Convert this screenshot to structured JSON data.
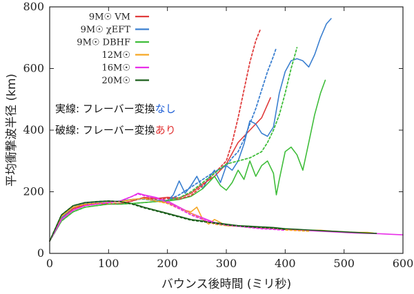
{
  "chart_data": {
    "type": "line",
    "xlabel": "バウンス後時間 (ミリ秒)",
    "ylabel": "平均衝撃波半径 (km)",
    "xlim": [
      0,
      600
    ],
    "ylim": [
      0,
      800
    ],
    "x_ticks": [
      "0",
      "100",
      "200",
      "300",
      "400",
      "500",
      "600"
    ],
    "y_ticks": [
      "0",
      "200",
      "400",
      "600",
      "800"
    ],
    "grid": false,
    "legend_position": "top-left",
    "legend_entries": [
      "9M☉ VM",
      "9M☉ χEFT",
      "9M☉ DBHF",
      "12M☉",
      "16M☉",
      "20M☉"
    ],
    "annotations": {
      "line1_prefix": "実線: フレーバー変換",
      "line1_highlight": "なし",
      "line2_prefix": "破線: フレーバー変換",
      "line2_highlight": "あり"
    },
    "annotation_colors": {
      "line1_highlight": "#1f5fd6",
      "line2_highlight": "#e03030"
    },
    "series": [
      {
        "name": "9M☉ VM",
        "style": "solid",
        "color": "#e03c3c",
        "x": [
          0,
          20,
          40,
          60,
          80,
          100,
          120,
          140,
          160,
          180,
          200,
          220,
          240,
          260,
          280,
          300,
          320,
          340,
          360,
          375
        ],
        "y": [
          40,
          115,
          145,
          158,
          162,
          160,
          162,
          170,
          182,
          178,
          182,
          180,
          195,
          225,
          250,
          290,
          360,
          400,
          440,
          505
        ]
      },
      {
        "name": "9M☉ VM",
        "style": "dashed",
        "color": "#e03c3c",
        "x": [
          0,
          20,
          40,
          60,
          80,
          100,
          120,
          140,
          160,
          180,
          200,
          220,
          240,
          260,
          280,
          300,
          310,
          320,
          330,
          340,
          350,
          358
        ],
        "y": [
          40,
          115,
          145,
          158,
          162,
          160,
          162,
          170,
          180,
          176,
          178,
          176,
          188,
          220,
          260,
          300,
          360,
          440,
          530,
          620,
          690,
          728
        ]
      },
      {
        "name": "9M☉ χEFT",
        "style": "solid",
        "color": "#3a7fd0",
        "x": [
          0,
          20,
          40,
          60,
          80,
          100,
          120,
          140,
          160,
          180,
          200,
          210,
          220,
          230,
          240,
          250,
          260,
          270,
          280,
          290,
          300,
          310,
          320,
          330,
          340,
          350,
          360,
          370,
          380,
          390,
          400,
          410,
          420,
          430,
          440,
          450,
          460,
          470,
          478
        ],
        "y": [
          40,
          115,
          150,
          162,
          165,
          165,
          170,
          175,
          178,
          172,
          170,
          190,
          235,
          195,
          220,
          250,
          210,
          245,
          270,
          230,
          285,
          270,
          300,
          355,
          430,
          420,
          390,
          380,
          410,
          520,
          590,
          625,
          632,
          625,
          605,
          645,
          700,
          745,
          762
        ]
      },
      {
        "name": "9M☉ χEFT",
        "style": "dashed",
        "color": "#3a7fd0",
        "x": [
          0,
          20,
          40,
          60,
          80,
          100,
          120,
          140,
          160,
          180,
          200,
          220,
          240,
          260,
          280,
          300,
          310,
          320,
          330,
          340,
          350,
          360,
          370,
          380,
          385
        ],
        "y": [
          40,
          115,
          150,
          162,
          165,
          165,
          170,
          175,
          176,
          170,
          172,
          190,
          215,
          240,
          265,
          285,
          310,
          330,
          370,
          420,
          470,
          530,
          590,
          640,
          668
        ]
      },
      {
        "name": "9M☉ DBHF",
        "style": "solid",
        "color": "#3fbd3a",
        "x": [
          0,
          20,
          40,
          60,
          80,
          100,
          120,
          140,
          160,
          180,
          200,
          220,
          240,
          260,
          270,
          280,
          290,
          300,
          310,
          320,
          330,
          340,
          350,
          360,
          370,
          380,
          385,
          390,
          400,
          410,
          420,
          430,
          440,
          450,
          460,
          468
        ],
        "y": [
          40,
          105,
          135,
          150,
          155,
          160,
          160,
          162,
          165,
          168,
          170,
          175,
          185,
          210,
          230,
          250,
          220,
          205,
          230,
          270,
          240,
          300,
          250,
          285,
          300,
          260,
          190,
          240,
          330,
          345,
          320,
          270,
          360,
          450,
          520,
          562
        ]
      },
      {
        "name": "9M☉ DBHF",
        "style": "dashed",
        "color": "#3fbd3a",
        "x": [
          0,
          20,
          40,
          60,
          80,
          100,
          120,
          140,
          160,
          180,
          200,
          220,
          240,
          260,
          280,
          300,
          320,
          340,
          360,
          370,
          380,
          390,
          400,
          410,
          420
        ],
        "y": [
          40,
          105,
          135,
          150,
          155,
          160,
          160,
          162,
          165,
          168,
          172,
          180,
          200,
          230,
          260,
          290,
          300,
          310,
          330,
          360,
          400,
          450,
          520,
          600,
          668
        ]
      },
      {
        "name": "12M☉",
        "style": "solid",
        "color": "#f5a623",
        "x": [
          0,
          20,
          40,
          60,
          80,
          100,
          120,
          140,
          160,
          180,
          200,
          220,
          230,
          240,
          250,
          260,
          270,
          280,
          300,
          320,
          340,
          360,
          380,
          400,
          420,
          440,
          460,
          480,
          500,
          520,
          540,
          550
        ],
        "y": [
          40,
          120,
          150,
          160,
          163,
          165,
          168,
          175,
          178,
          170,
          165,
          150,
          140,
          135,
          150,
          110,
          95,
          110,
          90,
          88,
          85,
          82,
          80,
          78,
          76,
          75,
          75,
          72,
          70,
          68,
          68,
          66
        ]
      },
      {
        "name": "12M☉",
        "style": "dashed",
        "color": "#f5a623",
        "x": [
          0,
          20,
          40,
          60,
          80,
          100,
          120,
          140,
          160,
          180,
          200,
          220,
          240,
          260,
          280,
          300,
          320,
          340,
          360,
          380,
          400,
          420,
          440
        ],
        "y": [
          40,
          120,
          150,
          160,
          163,
          165,
          168,
          175,
          178,
          170,
          162,
          145,
          130,
          110,
          95,
          90,
          88,
          84,
          82,
          80,
          76,
          74,
          72
        ]
      },
      {
        "name": "16M☉",
        "style": "solid",
        "color": "#e82ee8",
        "x": [
          0,
          20,
          40,
          60,
          80,
          100,
          120,
          140,
          150,
          160,
          180,
          200,
          220,
          240,
          260,
          280,
          300,
          320,
          340,
          360,
          380,
          400,
          420,
          440,
          460,
          480,
          500,
          520,
          540,
          560,
          580,
          600
        ],
        "y": [
          40,
          110,
          140,
          155,
          160,
          165,
          170,
          185,
          195,
          190,
          182,
          170,
          150,
          130,
          115,
          100,
          92,
          88,
          85,
          82,
          80,
          78,
          76,
          74,
          72,
          70,
          68,
          66,
          65,
          64,
          62,
          60
        ]
      },
      {
        "name": "16M☉",
        "style": "dashed",
        "color": "#e82ee8",
        "x": [
          0,
          20,
          40,
          60,
          80,
          100,
          120,
          140,
          150,
          160,
          180,
          200,
          220,
          240,
          260,
          280,
          300,
          320,
          340,
          360,
          380,
          400
        ],
        "y": [
          40,
          110,
          140,
          155,
          160,
          165,
          170,
          185,
          193,
          188,
          180,
          165,
          145,
          125,
          110,
          98,
          92,
          88,
          84,
          80,
          78,
          75
        ]
      },
      {
        "name": "20M☉",
        "style": "solid",
        "color": "#1a5e1a",
        "x": [
          0,
          20,
          40,
          60,
          80,
          100,
          120,
          140,
          160,
          180,
          200,
          220,
          240,
          260,
          280,
          300,
          320,
          340,
          360,
          380,
          400,
          420,
          440,
          460,
          480,
          500,
          520,
          540,
          555
        ],
        "y": [
          40,
          125,
          155,
          165,
          168,
          170,
          168,
          162,
          150,
          140,
          130,
          120,
          110,
          105,
          100,
          95,
          90,
          88,
          86,
          84,
          80,
          78,
          76,
          74,
          72,
          70,
          68,
          66,
          65
        ]
      },
      {
        "name": "20M☉",
        "style": "dashed",
        "color": "#1a5e1a",
        "x": [
          0,
          20,
          40,
          60,
          80,
          100,
          120,
          140,
          160,
          180,
          200,
          220,
          240,
          260,
          280,
          300,
          320,
          340,
          360,
          380,
          400
        ],
        "y": [
          40,
          125,
          155,
          165,
          168,
          170,
          168,
          160,
          148,
          138,
          128,
          118,
          108,
          103,
          98,
          93,
          89,
          86,
          84,
          82,
          78
        ]
      }
    ]
  }
}
